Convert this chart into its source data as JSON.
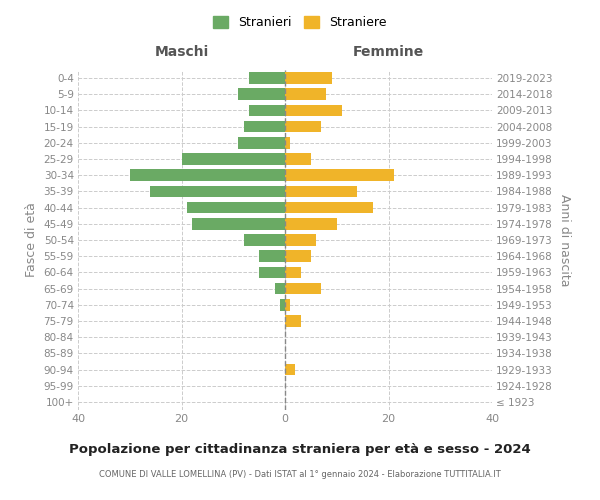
{
  "age_groups": [
    "100+",
    "95-99",
    "90-94",
    "85-89",
    "80-84",
    "75-79",
    "70-74",
    "65-69",
    "60-64",
    "55-59",
    "50-54",
    "45-49",
    "40-44",
    "35-39",
    "30-34",
    "25-29",
    "20-24",
    "15-19",
    "10-14",
    "5-9",
    "0-4"
  ],
  "birth_years": [
    "≤ 1923",
    "1924-1928",
    "1929-1933",
    "1934-1938",
    "1939-1943",
    "1944-1948",
    "1949-1953",
    "1954-1958",
    "1959-1963",
    "1964-1968",
    "1969-1973",
    "1974-1978",
    "1979-1983",
    "1984-1988",
    "1989-1993",
    "1994-1998",
    "1999-2003",
    "2004-2008",
    "2009-2013",
    "2014-2018",
    "2019-2023"
  ],
  "maschi": [
    0,
    0,
    0,
    0,
    0,
    0,
    1,
    2,
    5,
    5,
    8,
    18,
    19,
    26,
    30,
    20,
    9,
    8,
    7,
    9,
    7
  ],
  "femmine": [
    0,
    0,
    2,
    0,
    0,
    3,
    1,
    7,
    3,
    5,
    6,
    10,
    17,
    14,
    21,
    5,
    1,
    7,
    11,
    8,
    9
  ],
  "maschi_color": "#6aaa64",
  "femmine_color": "#f0b429",
  "title": "Popolazione per cittadinanza straniera per età e sesso - 2024",
  "subtitle": "COMUNE DI VALLE LOMELLINA (PV) - Dati ISTAT al 1° gennaio 2024 - Elaborazione TUTTITALIA.IT",
  "xlabel_left": "Maschi",
  "xlabel_right": "Femmine",
  "ylabel_left": "Fasce di età",
  "ylabel_right": "Anni di nascita",
  "legend_maschi": "Stranieri",
  "legend_femmine": "Straniere",
  "xlim": 40,
  "background_color": "#ffffff",
  "grid_color": "#cccccc"
}
